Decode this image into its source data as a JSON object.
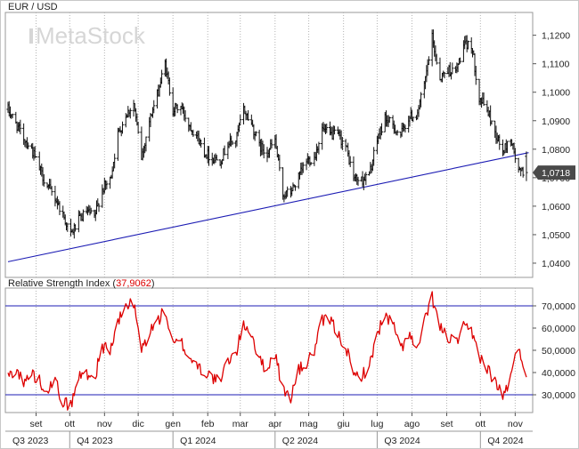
{
  "chart_data": [
    {
      "type": "ohlc-bar",
      "title": "EUR / USD",
      "watermark": "MetaStock",
      "ylim": [
        1.035,
        1.128
      ],
      "yticks": [
        {
          "v": 1.12,
          "label": "1,1200"
        },
        {
          "v": 1.11,
          "label": "1,1100"
        },
        {
          "v": 1.1,
          "label": "1,1000"
        },
        {
          "v": 1.09,
          "label": "1,0900"
        },
        {
          "v": 1.08,
          "label": "1,0800"
        },
        {
          "v": 1.07,
          "label": "1,0700"
        },
        {
          "v": 1.06,
          "label": "1,0600"
        },
        {
          "v": 1.05,
          "label": "1,0500"
        },
        {
          "v": 1.04,
          "label": "1,0400"
        }
      ],
      "last_value": 1.0718,
      "last_label": "1,0718",
      "trendline": {
        "from": [
          "2023-08-07",
          1.0405
        ],
        "to": [
          "2024-11-13",
          1.0788
        ]
      },
      "closes": [
        [
          "2023-08-07",
          1.094
        ],
        [
          "2023-08-14",
          1.089
        ],
        [
          "2023-08-21",
          1.084
        ],
        [
          "2023-08-28",
          1.08
        ],
        [
          "2023-09-04",
          1.073
        ],
        [
          "2023-09-11",
          1.067
        ],
        [
          "2023-09-18",
          1.063
        ],
        [
          "2023-09-25",
          1.057
        ],
        [
          "2023-10-02",
          1.05
        ],
        [
          "2023-10-09",
          1.055
        ],
        [
          "2023-10-16",
          1.058
        ],
        [
          "2023-10-23",
          1.056
        ],
        [
          "2023-10-30",
          1.066
        ],
        [
          "2023-11-06",
          1.069
        ],
        [
          "2023-11-13",
          1.085
        ],
        [
          "2023-11-20",
          1.092
        ],
        [
          "2023-11-27",
          1.096
        ],
        [
          "2023-12-04",
          1.077
        ],
        [
          "2023-12-11",
          1.09
        ],
        [
          "2023-12-18",
          1.099
        ],
        [
          "2023-12-25",
          1.11
        ],
        [
          "2024-01-01",
          1.094
        ],
        [
          "2024-01-08",
          1.095
        ],
        [
          "2024-01-15",
          1.089
        ],
        [
          "2024-01-22",
          1.085
        ],
        [
          "2024-01-29",
          1.079
        ],
        [
          "2024-02-05",
          1.077
        ],
        [
          "2024-02-12",
          1.076
        ],
        [
          "2024-02-19",
          1.082
        ],
        [
          "2024-02-26",
          1.083
        ],
        [
          "2024-03-04",
          1.094
        ],
        [
          "2024-03-11",
          1.089
        ],
        [
          "2024-03-18",
          1.081
        ],
        [
          "2024-03-25",
          1.079
        ],
        [
          "2024-04-01",
          1.083
        ],
        [
          "2024-04-08",
          1.064
        ],
        [
          "2024-04-15",
          1.065
        ],
        [
          "2024-04-22",
          1.07
        ],
        [
          "2024-04-29",
          1.076
        ],
        [
          "2024-05-06",
          1.077
        ],
        [
          "2024-05-13",
          1.087
        ],
        [
          "2024-05-20",
          1.085
        ],
        [
          "2024-05-27",
          1.085
        ],
        [
          "2024-06-03",
          1.081
        ],
        [
          "2024-06-10",
          1.07
        ],
        [
          "2024-06-17",
          1.069
        ],
        [
          "2024-06-24",
          1.071
        ],
        [
          "2024-07-01",
          1.083
        ],
        [
          "2024-07-08",
          1.091
        ],
        [
          "2024-07-15",
          1.088
        ],
        [
          "2024-07-22",
          1.085
        ],
        [
          "2024-07-29",
          1.091
        ],
        [
          "2024-08-05",
          1.092
        ],
        [
          "2024-08-12",
          1.102
        ],
        [
          "2024-08-19",
          1.119
        ],
        [
          "2024-08-26",
          1.105
        ],
        [
          "2024-09-02",
          1.108
        ],
        [
          "2024-09-09",
          1.107
        ],
        [
          "2024-09-16",
          1.116
        ],
        [
          "2024-09-23",
          1.117
        ],
        [
          "2024-09-30",
          1.098
        ],
        [
          "2024-10-07",
          1.094
        ],
        [
          "2024-10-14",
          1.086
        ],
        [
          "2024-10-21",
          1.079
        ],
        [
          "2024-10-28",
          1.084
        ],
        [
          "2024-11-04",
          1.072
        ],
        [
          "2024-11-11",
          1.0718
        ]
      ]
    },
    {
      "type": "line",
      "title": "Relative Strength Index",
      "last_value_label": "37,9062",
      "ylim": [
        22,
        78
      ],
      "yticks": [
        {
          "v": 70,
          "label": "70,0000"
        },
        {
          "v": 60,
          "label": "60,0000"
        },
        {
          "v": 50,
          "label": "50,0000"
        },
        {
          "v": 40,
          "label": "40,0000"
        },
        {
          "v": 30,
          "label": "30,0000"
        }
      ],
      "levels": [
        70,
        30
      ],
      "series": [
        {
          "values": [
            [
              "2023-08-07",
              38
            ],
            [
              "2023-08-14",
              42
            ],
            [
              "2023-08-21",
              35
            ],
            [
              "2023-08-28",
              40
            ],
            [
              "2023-09-04",
              36
            ],
            [
              "2023-09-11",
              33
            ],
            [
              "2023-09-18",
              36
            ],
            [
              "2023-09-25",
              27
            ],
            [
              "2023-10-02",
              25
            ],
            [
              "2023-10-09",
              38
            ],
            [
              "2023-10-16",
              40
            ],
            [
              "2023-10-23",
              37
            ],
            [
              "2023-10-30",
              52
            ],
            [
              "2023-11-06",
              50
            ],
            [
              "2023-11-13",
              62
            ],
            [
              "2023-11-20",
              70
            ],
            [
              "2023-11-27",
              71
            ],
            [
              "2023-12-04",
              50
            ],
            [
              "2023-12-11",
              58
            ],
            [
              "2023-12-18",
              63
            ],
            [
              "2023-12-25",
              68
            ],
            [
              "2024-01-01",
              52
            ],
            [
              "2024-01-08",
              54
            ],
            [
              "2024-01-15",
              47
            ],
            [
              "2024-01-22",
              44
            ],
            [
              "2024-01-29",
              40
            ],
            [
              "2024-02-05",
              38
            ],
            [
              "2024-02-12",
              35
            ],
            [
              "2024-02-19",
              46
            ],
            [
              "2024-02-26",
              48
            ],
            [
              "2024-03-04",
              62
            ],
            [
              "2024-03-11",
              58
            ],
            [
              "2024-03-18",
              45
            ],
            [
              "2024-03-25",
              42
            ],
            [
              "2024-04-01",
              49
            ],
            [
              "2024-04-08",
              32
            ],
            [
              "2024-04-15",
              29
            ],
            [
              "2024-04-22",
              41
            ],
            [
              "2024-04-29",
              44
            ],
            [
              "2024-05-06",
              50
            ],
            [
              "2024-05-13",
              63
            ],
            [
              "2024-05-20",
              64
            ],
            [
              "2024-05-27",
              57
            ],
            [
              "2024-06-03",
              52
            ],
            [
              "2024-06-10",
              38
            ],
            [
              "2024-06-17",
              39
            ],
            [
              "2024-06-24",
              42
            ],
            [
              "2024-07-01",
              58
            ],
            [
              "2024-07-08",
              65
            ],
            [
              "2024-07-15",
              62
            ],
            [
              "2024-07-22",
              50
            ],
            [
              "2024-07-29",
              58
            ],
            [
              "2024-08-05",
              49
            ],
            [
              "2024-08-12",
              62
            ],
            [
              "2024-08-19",
              74
            ],
            [
              "2024-08-26",
              60
            ],
            [
              "2024-09-02",
              56
            ],
            [
              "2024-09-09",
              53
            ],
            [
              "2024-09-16",
              60
            ],
            [
              "2024-09-23",
              58
            ],
            [
              "2024-09-30",
              48
            ],
            [
              "2024-10-07",
              42
            ],
            [
              "2024-10-14",
              36
            ],
            [
              "2024-10-21",
              29
            ],
            [
              "2024-10-28",
              38
            ],
            [
              "2024-11-04",
              52
            ],
            [
              "2024-11-11",
              37.9062
            ]
          ]
        }
      ]
    }
  ],
  "x_axis": {
    "months": [
      {
        "d": "2023-09-01",
        "label": "set"
      },
      {
        "d": "2023-10-01",
        "label": "ott"
      },
      {
        "d": "2023-11-01",
        "label": "nov"
      },
      {
        "d": "2023-12-01",
        "label": "dic"
      },
      {
        "d": "2024-01-01",
        "label": "gen"
      },
      {
        "d": "2024-02-01",
        "label": "feb"
      },
      {
        "d": "2024-03-01",
        "label": "mar"
      },
      {
        "d": "2024-04-01",
        "label": "apr"
      },
      {
        "d": "2024-05-01",
        "label": "mag"
      },
      {
        "d": "2024-06-01",
        "label": "giu"
      },
      {
        "d": "2024-07-01",
        "label": "lug"
      },
      {
        "d": "2024-08-01",
        "label": "ago"
      },
      {
        "d": "2024-09-01",
        "label": "set"
      },
      {
        "d": "2024-10-01",
        "label": "ott"
      },
      {
        "d": "2024-11-01",
        "label": "nov"
      }
    ],
    "quarters": [
      {
        "d": "2023-08-01",
        "label": "Q3 2023"
      },
      {
        "d": "2023-10-01",
        "label": "Q4 2023"
      },
      {
        "d": "2024-01-01",
        "label": "Q1 2024"
      },
      {
        "d": "2024-04-01",
        "label": "Q2 2024"
      },
      {
        "d": "2024-07-01",
        "label": "Q3 2024"
      },
      {
        "d": "2024-10-01",
        "label": "Q4 2024"
      }
    ],
    "range": [
      "2023-08-07",
      "2024-11-15"
    ]
  },
  "colors": {
    "price_bars": "#111111",
    "trendline": "#1c1cb4",
    "rsi_line": "#dd0000",
    "rsi_levels": "#1c1cb4",
    "last_value_bg": "#4a4a4a",
    "rsi_value_text": "#dd0000"
  }
}
